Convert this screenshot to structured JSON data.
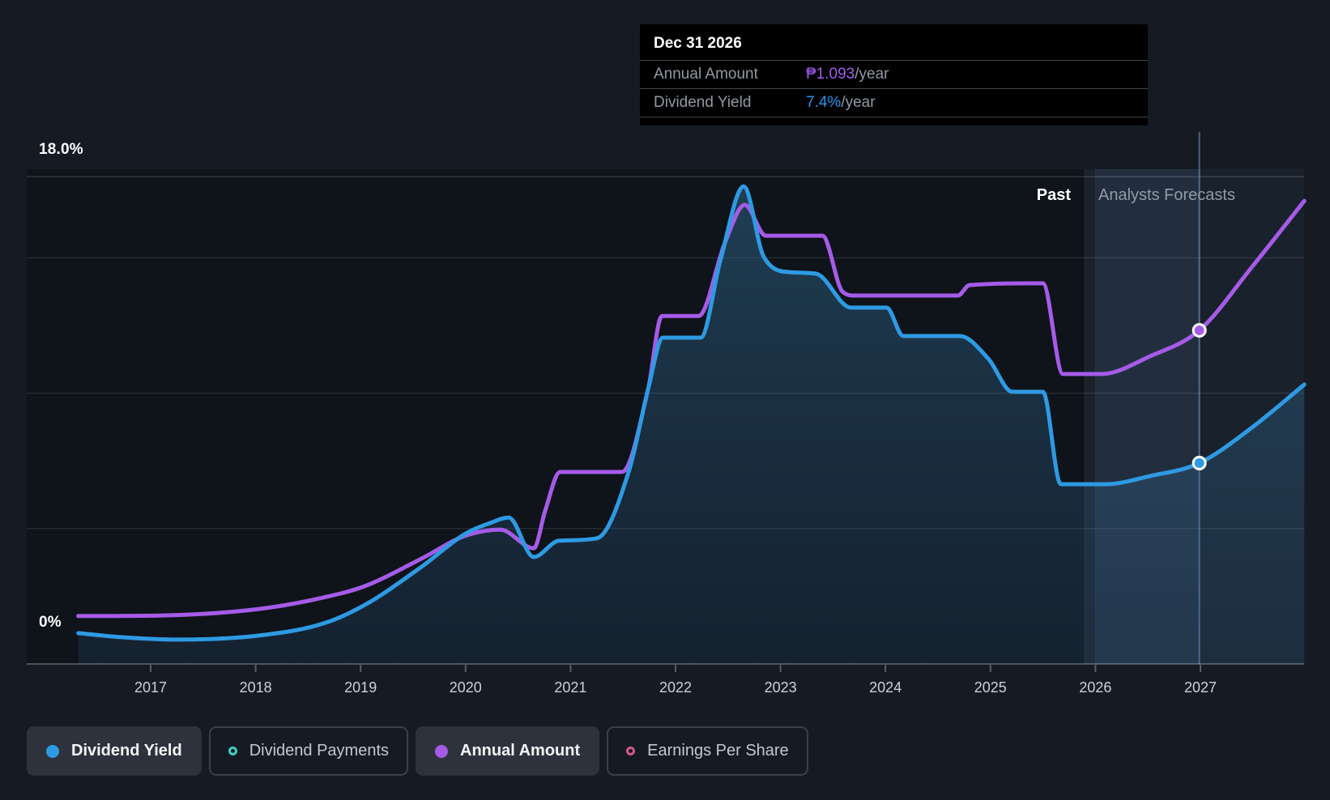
{
  "tooltip": {
    "date": "Dec 31 2026",
    "rows": [
      {
        "label": "Annual Amount",
        "value": "₱1.093",
        "suffix": "/year",
        "color": "#a55bf0"
      },
      {
        "label": "Dividend Yield",
        "value": "7.4%",
        "suffix": "/year",
        "color": "#2196f3"
      }
    ]
  },
  "axis": {
    "y_top_label": "18.0%",
    "y_bottom_label": "0%",
    "x_ticks": [
      "2017",
      "2018",
      "2019",
      "2020",
      "2021",
      "2022",
      "2023",
      "2024",
      "2025",
      "2026",
      "2027"
    ]
  },
  "regions": {
    "past_label": "Past",
    "forecast_label": "Analysts Forecasts"
  },
  "legend": [
    {
      "label": "Dividend Yield",
      "color": "#2e9ae3",
      "style": "filled",
      "active": true
    },
    {
      "label": "Dividend Payments",
      "color": "#3ecfc0",
      "style": "ring",
      "active": false
    },
    {
      "label": "Annual Amount",
      "color": "#a55be8",
      "style": "filled",
      "active": true
    },
    {
      "label": "Earnings Per Share",
      "color": "#d35791",
      "style": "ring",
      "active": false
    }
  ],
  "chart_data": {
    "type": "line",
    "title": "Dividend yield and payments history with analyst forecasts",
    "x_axis": {
      "tick_years": [
        2017,
        2018,
        2019,
        2020,
        2021,
        2022,
        2023,
        2024,
        2025,
        2026,
        2027
      ],
      "range_years": [
        2016.31,
        2027.99
      ]
    },
    "yield_axis": {
      "max_pct": 18,
      "min_pct": 0,
      "gridline_pcts": [
        18,
        15,
        10,
        5
      ],
      "top_label": "18.0%",
      "bottom_label": "0%"
    },
    "forecast_divider_year": 2025.9,
    "highlight_band_years": [
      2026.0,
      2026.995
    ],
    "grid": true,
    "legend_position": "bottom",
    "series": [
      {
        "name": "Dividend Yield",
        "unit": "%",
        "color": "#2e9ae3",
        "area": true,
        "points": [
          [
            2016.31,
            1.14
          ],
          [
            2016.72,
            0.99
          ],
          [
            2017.26,
            0.9
          ],
          [
            2018.03,
            1.05
          ],
          [
            2018.65,
            1.5
          ],
          [
            2019.04,
            2.18
          ],
          [
            2019.58,
            3.59
          ],
          [
            2019.99,
            4.79
          ],
          [
            2020.25,
            5.23
          ],
          [
            2020.41,
            5.41
          ],
          [
            2020.65,
            3.95
          ],
          [
            2020.89,
            4.55
          ],
          [
            2021.25,
            4.64
          ],
          [
            2021.56,
            7.18
          ],
          [
            2021.74,
            10.17
          ],
          [
            2021.88,
            12.05
          ],
          [
            2022.24,
            12.05
          ],
          [
            2022.43,
            14.95
          ],
          [
            2022.65,
            17.64
          ],
          [
            2022.84,
            15.04
          ],
          [
            2023.09,
            14.47
          ],
          [
            2023.34,
            14.41
          ],
          [
            2023.67,
            13.16
          ],
          [
            2024.01,
            13.16
          ],
          [
            2024.17,
            12.11
          ],
          [
            2024.71,
            12.11
          ],
          [
            2024.98,
            11.27
          ],
          [
            2025.21,
            10.05
          ],
          [
            2025.5,
            10.05
          ],
          [
            2025.67,
            6.64
          ],
          [
            2026.1,
            6.64
          ],
          [
            2026.52,
            6.94
          ],
          [
            2026.99,
            7.42
          ],
          [
            2027.49,
            8.73
          ],
          [
            2027.99,
            10.32
          ]
        ]
      },
      {
        "name": "Annual Amount",
        "unit": "PHP/year",
        "color": "#a55be8",
        "area": false,
        "points": [
          [
            2016.31,
            0.157
          ],
          [
            2017.11,
            0.159
          ],
          [
            2018.03,
            0.18
          ],
          [
            2018.65,
            0.218
          ],
          [
            2019.04,
            0.255
          ],
          [
            2019.58,
            0.345
          ],
          [
            2019.99,
            0.419
          ],
          [
            2020.33,
            0.44
          ],
          [
            2020.65,
            0.379
          ],
          [
            2020.76,
            0.504
          ],
          [
            2020.9,
            0.629
          ],
          [
            2021.49,
            0.629
          ],
          [
            2021.74,
            0.902
          ],
          [
            2021.87,
            1.14
          ],
          [
            2022.22,
            1.14
          ],
          [
            2022.47,
            1.379
          ],
          [
            2022.66,
            1.504
          ],
          [
            2022.86,
            1.403
          ],
          [
            2023.4,
            1.403
          ],
          [
            2023.59,
            1.22
          ],
          [
            2023.71,
            1.207
          ],
          [
            2024.69,
            1.207
          ],
          [
            2024.8,
            1.241
          ],
          [
            2025.5,
            1.247
          ],
          [
            2025.69,
            0.95
          ],
          [
            2026.06,
            0.95
          ],
          [
            2026.52,
            1.008
          ],
          [
            2026.99,
            1.093
          ],
          [
            2027.49,
            1.3
          ],
          [
            2027.99,
            1.517
          ]
        ]
      }
    ],
    "marker": {
      "date": "Dec 31 2026",
      "year": 2026.99,
      "dividend_yield_pct": 7.42,
      "annual_amount_php": 1.093
    }
  }
}
